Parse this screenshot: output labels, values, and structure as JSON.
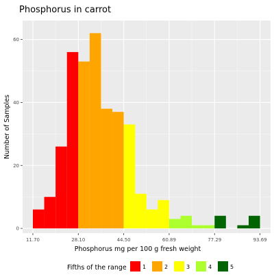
{
  "chart_data": {
    "type": "bar",
    "title": "Phosphorus in carrot",
    "xlabel": "Phosphorus mg per 100 g fresh weight",
    "ylabel": "Number of Samples",
    "x_ticks": [
      "11.70",
      "28.10",
      "44.50",
      "60.89",
      "77.29",
      "93.69"
    ],
    "x_tick_values": [
      11.7,
      28.1,
      44.5,
      60.89,
      77.29,
      93.69
    ],
    "xlim": [
      8.0,
      97.5
    ],
    "y_ticks": [
      0,
      20,
      40,
      60
    ],
    "ylim": [
      -1.5,
      66
    ],
    "grid": true,
    "legend_position": "bottom",
    "legend_title": "Fifths of the range",
    "legend": [
      {
        "label": "1",
        "color": "#ff0000"
      },
      {
        "label": "2",
        "color": "#ffa500"
      },
      {
        "label": "3",
        "color": "#ffff00"
      },
      {
        "label": "4",
        "color": "#adff2f"
      },
      {
        "label": "5",
        "color": "#006400"
      }
    ],
    "bins": [
      {
        "start": 11.7,
        "end": 15.8,
        "count": 6,
        "fifth": 1
      },
      {
        "start": 15.8,
        "end": 19.9,
        "count": 10,
        "fifth": 1
      },
      {
        "start": 19.9,
        "end": 24.0,
        "count": 26,
        "fifth": 1
      },
      {
        "start": 24.0,
        "end": 28.1,
        "count": 56,
        "fifth": 1
      },
      {
        "start": 28.1,
        "end": 32.2,
        "count": 53,
        "fifth": 2
      },
      {
        "start": 32.2,
        "end": 36.3,
        "count": 62,
        "fifth": 2
      },
      {
        "start": 36.3,
        "end": 40.4,
        "count": 38,
        "fifth": 2
      },
      {
        "start": 40.4,
        "end": 44.5,
        "count": 37,
        "fifth": 2
      },
      {
        "start": 44.5,
        "end": 48.6,
        "count": 33,
        "fifth": 3
      },
      {
        "start": 48.6,
        "end": 52.7,
        "count": 11,
        "fifth": 3
      },
      {
        "start": 52.7,
        "end": 56.8,
        "count": 6,
        "fifth": 3
      },
      {
        "start": 56.8,
        "end": 60.89,
        "count": 9,
        "fifth": 3
      },
      {
        "start": 60.89,
        "end": 64.99,
        "count": 3,
        "fifth": 4
      },
      {
        "start": 64.99,
        "end": 69.09,
        "count": 4,
        "fifth": 4
      },
      {
        "start": 69.09,
        "end": 73.19,
        "count": 1,
        "fifth": 4
      },
      {
        "start": 73.19,
        "end": 77.29,
        "count": 1,
        "fifth": 4
      },
      {
        "start": 77.29,
        "end": 81.39,
        "count": 4,
        "fifth": 5
      },
      {
        "start": 81.39,
        "end": 85.49,
        "count": 0,
        "fifth": 5
      },
      {
        "start": 85.49,
        "end": 89.59,
        "count": 1,
        "fifth": 5
      },
      {
        "start": 89.59,
        "end": 93.69,
        "count": 4,
        "fifth": 5
      }
    ]
  }
}
